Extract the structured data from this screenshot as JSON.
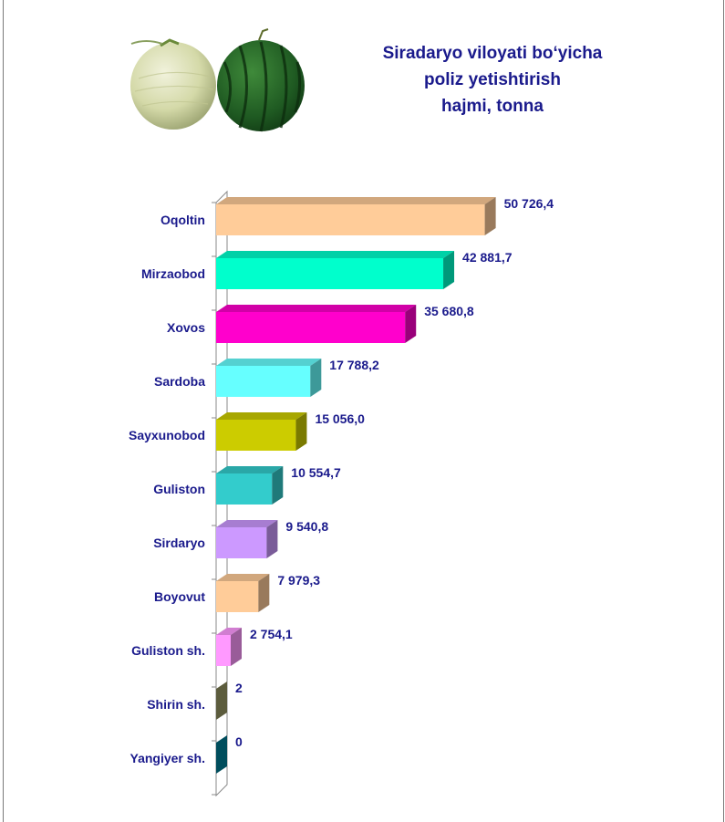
{
  "chart_data": {
    "type": "bar",
    "orientation": "horizontal",
    "title_lines": [
      "Siradaryo viloyati bo‘yicha",
      "poliz yetishtirish",
      "hajmi, tonna"
    ],
    "categories": [
      "Oqoltin",
      "Mirzaobod",
      "Xovos",
      "Sardoba",
      "Sayxunobod",
      "Guliston",
      "Sirdaryo",
      "Boyovut",
      "Guliston sh.",
      "Shirin sh.",
      "Yangiyer sh."
    ],
    "values": [
      50726.4,
      42881.7,
      35680.8,
      17788.2,
      15056.0,
      10554.7,
      9540.8,
      7979.3,
      2754.1,
      2,
      0
    ],
    "value_labels": [
      "50 726,4",
      "42 881,7",
      "35 680,8",
      "17 788,2",
      "15 056,0",
      "10 554,7",
      "9 540,8",
      "7 979,3",
      "2 754,1",
      "2",
      "0"
    ],
    "colors": [
      "#ffcc99",
      "#00ffcc",
      "#ff00cc",
      "#66ffff",
      "#cccc00",
      "#33cccc",
      "#cc99ff",
      "#ffcc99",
      "#ff99ff",
      "#999966",
      "#008099"
    ],
    "xlim": [
      0,
      52000
    ],
    "grid": false,
    "legend": "none"
  },
  "illustration": {
    "icon_left": "melon-icon",
    "icon_right": "watermelon-icon"
  }
}
